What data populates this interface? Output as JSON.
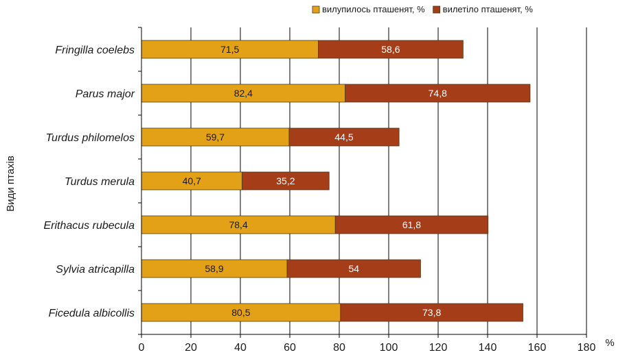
{
  "chart_data": {
    "type": "bar",
    "orientation": "horizontal",
    "stacked": true,
    "categories": [
      "Fringilla coelebs",
      "Parus major",
      "Turdus philomelos",
      "Turdus merula",
      "Erithacus rubecula",
      "Sylvia atricapilla",
      "Ficedula albicollis"
    ],
    "series": [
      {
        "name": "вилупилось пташенят, %",
        "color": "#E3A118",
        "values": [
          71.5,
          82.4,
          59.7,
          40.7,
          78.4,
          58.9,
          80.5
        ],
        "labels": [
          "71,5",
          "82,4",
          "59,7",
          "40,7",
          "78,4",
          "58,9",
          "80,5"
        ]
      },
      {
        "name": "вилетіло пташенят, %",
        "color": "#A53E18",
        "values": [
          58.6,
          74.8,
          44.5,
          35.2,
          61.8,
          54,
          73.8
        ],
        "labels": [
          "58,6",
          "74,8",
          "44,5",
          "35,2",
          "61,8",
          "54",
          "73,8"
        ]
      }
    ],
    "xlabel": "%",
    "ylabel": "Види птахів",
    "xlim": [
      0,
      180
    ],
    "xticks": [
      0,
      20,
      40,
      60,
      80,
      100,
      120,
      140,
      160,
      180
    ],
    "grid": "vertical",
    "legend_position": "top-right"
  }
}
